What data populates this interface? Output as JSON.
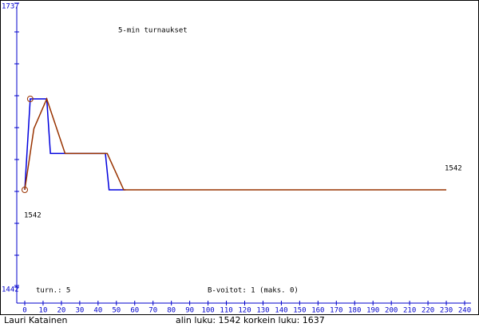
{
  "chart_data": {
    "type": "line",
    "title": "5-min turnaukset",
    "x": [
      0,
      3,
      12,
      14,
      44,
      46,
      230
    ],
    "series": [
      {
        "color": "#0000dd",
        "x": [
          0,
          3,
          12,
          14,
          44,
          46,
          55
        ],
        "values": [
          1542,
          1637,
          1637,
          1580,
          1580,
          1542,
          1542
        ]
      },
      {
        "color": "#993300",
        "x": [
          0,
          5,
          12,
          22,
          45,
          54,
          230
        ],
        "values": [
          1542,
          1606,
          1637,
          1580,
          1580,
          1542,
          1542
        ]
      }
    ],
    "markers": [
      {
        "x": 0,
        "value": 1542
      },
      {
        "x": 3,
        "value": 1637
      }
    ],
    "ylim": [
      1442,
      1737
    ],
    "yticks": [
      1442,
      1737
    ],
    "xlim": [
      0,
      240
    ],
    "xticks": [
      0,
      10,
      20,
      30,
      40,
      50,
      60,
      70,
      80,
      90,
      100,
      110,
      120,
      130,
      140,
      150,
      160,
      170,
      180,
      190,
      200,
      210,
      220,
      230,
      240
    ],
    "annotations": {
      "last": "1542",
      "first": "1542",
      "games": "turn.: 5",
      "b_wins": "B-voitot: 1 (maks. 0)"
    },
    "footer": {
      "player": "Lauri Katainen",
      "stats": "alin luku: 1542  korkein luku: 1637"
    }
  }
}
